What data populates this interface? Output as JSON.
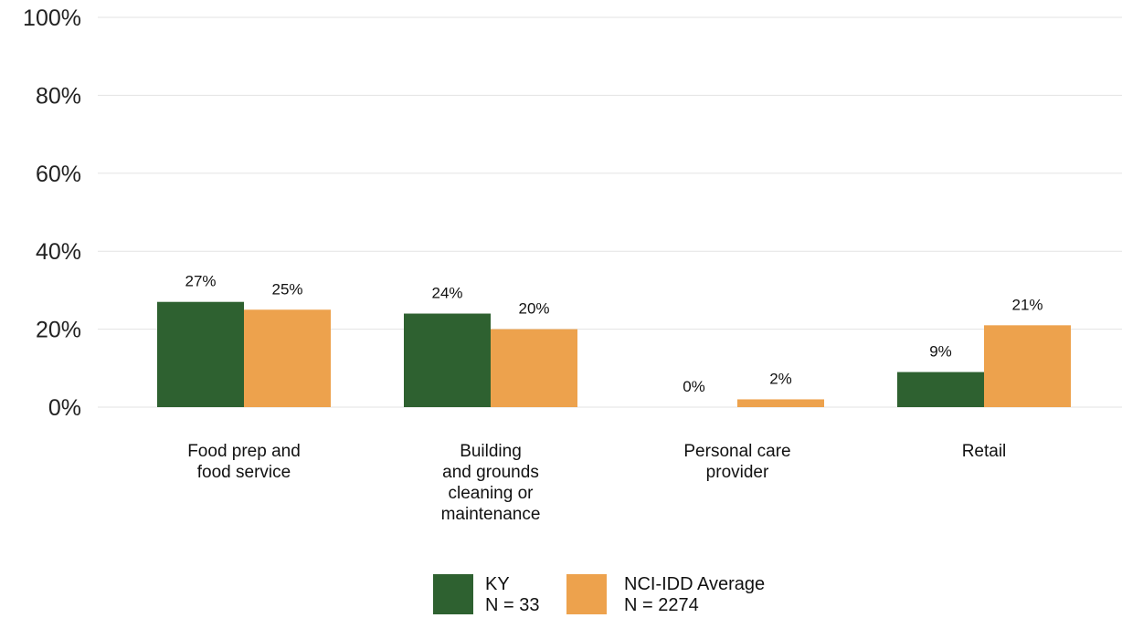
{
  "chart_data": {
    "type": "bar",
    "title": "",
    "xlabel": "",
    "ylabel": "",
    "ylim": [
      0,
      100
    ],
    "yticks": [
      "0%",
      "20%",
      "40%",
      "60%",
      "80%",
      "100%"
    ],
    "ytick_values": [
      0,
      20,
      40,
      60,
      80,
      100
    ],
    "grid": true,
    "legend_position": "bottom",
    "categories": [
      [
        "Food prep and",
        "food service"
      ],
      [
        "Building",
        "and grounds",
        "cleaning or",
        "maintenance"
      ],
      [
        "Personal care",
        "provider"
      ],
      [
        "Retail"
      ]
    ],
    "series": [
      {
        "name": "KY",
        "legend_sub": "N = 33",
        "color": "#2e6130",
        "values": [
          27,
          24,
          0,
          9
        ],
        "labels": [
          "27%",
          "24%",
          "0%",
          "9%"
        ]
      },
      {
        "name": "NCI-IDD Average",
        "legend_sub": "N = 2274",
        "color": "#eda24d",
        "values": [
          25,
          20,
          2,
          21
        ],
        "labels": [
          "25%",
          "20%",
          "2%",
          "21%"
        ]
      }
    ]
  }
}
